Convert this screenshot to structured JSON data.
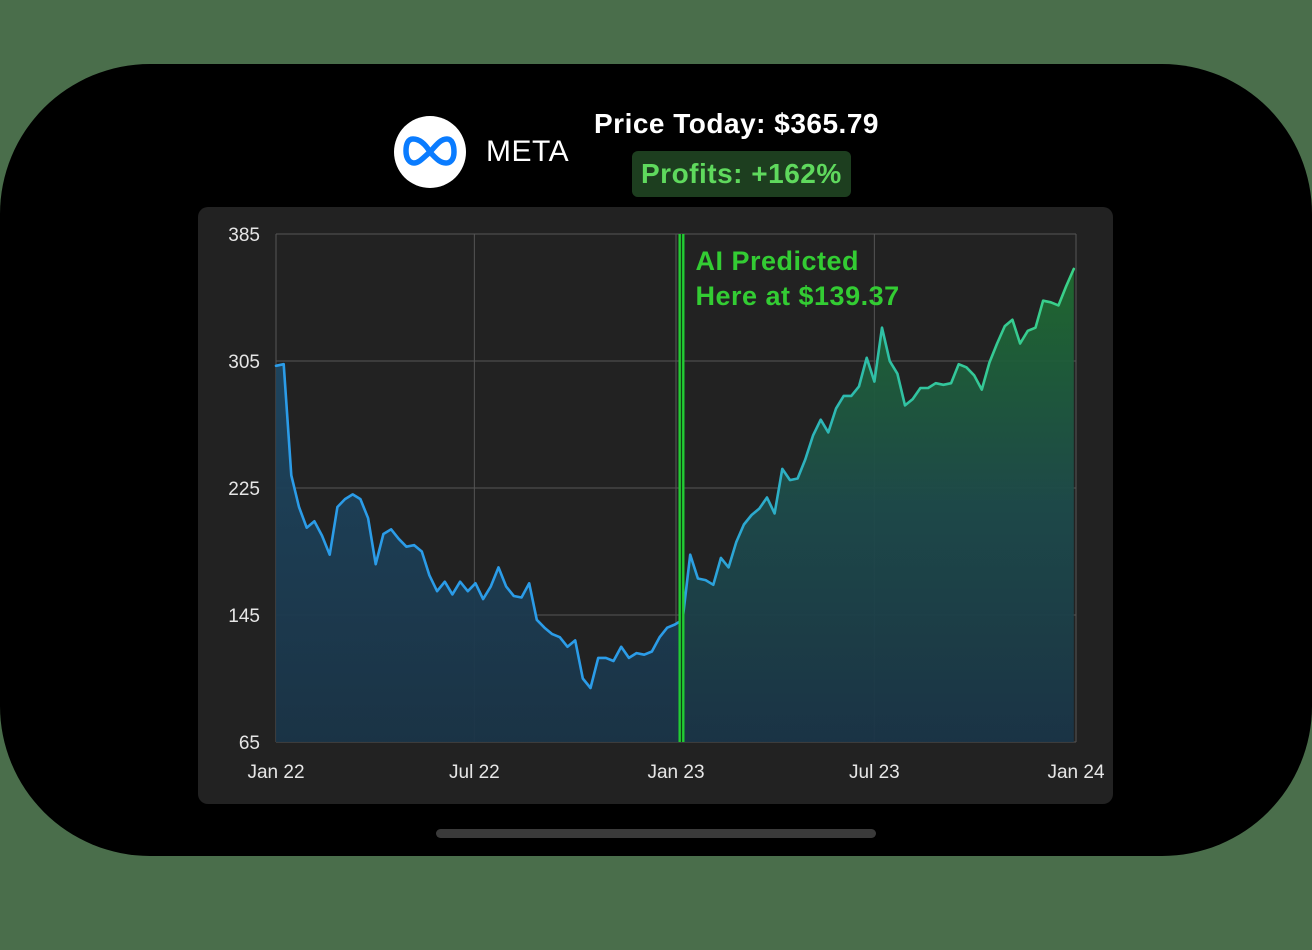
{
  "header": {
    "ticker": "META",
    "logo_icon": "meta-infinity-logo-icon",
    "price_label": "Price Today: $365.79",
    "profits_label": "Profits: +162%"
  },
  "colors": {
    "background": "#4a6e4b",
    "card": "#222222",
    "line_blue": "#2b9ce8",
    "line_green": "#3ad188",
    "marker_green": "#22cc33",
    "profit_text": "#5fd95d",
    "profit_bg": "#1d3e1f"
  },
  "chart_data": {
    "type": "area",
    "title": "",
    "xlabel": "",
    "ylabel": "",
    "ylim": [
      65,
      385
    ],
    "yticks": [
      65,
      145,
      225,
      305,
      385
    ],
    "xlim": [
      "2022-01-01",
      "2024-01-01"
    ],
    "xticks": [
      {
        "value": "2022-01-01",
        "label": "Jan 22"
      },
      {
        "value": "2022-07-01",
        "label": "Jul 22"
      },
      {
        "value": "2023-01-01",
        "label": "Jan 23"
      },
      {
        "value": "2023-07-01",
        "label": "Jul 23"
      },
      {
        "value": "2024-01-01",
        "label": "Jan 24"
      }
    ],
    "grid": true,
    "annotation": {
      "x": "2023-01-06",
      "value": 139.37,
      "line1": "AI Predicted",
      "line2": "Here at $139.37"
    },
    "series": [
      {
        "x": [
          "2022-01-01",
          "2022-01-08",
          "2022-01-15",
          "2022-01-22",
          "2022-01-29",
          "2022-02-05",
          "2022-02-12",
          "2022-02-19",
          "2022-02-26",
          "2022-03-05",
          "2022-03-12",
          "2022-03-19",
          "2022-03-26",
          "2022-04-02",
          "2022-04-09",
          "2022-04-16",
          "2022-04-23",
          "2022-04-30",
          "2022-05-07",
          "2022-05-14",
          "2022-05-21",
          "2022-05-28",
          "2022-06-04",
          "2022-06-11",
          "2022-06-18",
          "2022-06-25",
          "2022-07-02",
          "2022-07-09",
          "2022-07-16",
          "2022-07-23",
          "2022-07-30",
          "2022-08-06",
          "2022-08-13",
          "2022-08-20",
          "2022-08-27",
          "2022-09-03",
          "2022-09-10",
          "2022-09-17",
          "2022-09-24",
          "2022-10-01",
          "2022-10-08",
          "2022-10-15",
          "2022-10-22",
          "2022-10-29",
          "2022-11-05",
          "2022-11-12",
          "2022-11-19",
          "2022-11-26",
          "2022-12-03",
          "2022-12-10",
          "2022-12-17",
          "2022-12-24",
          "2022-12-31",
          "2023-01-07",
          "2023-01-14",
          "2023-01-21",
          "2023-01-28",
          "2023-02-04",
          "2023-02-11",
          "2023-02-18",
          "2023-02-25",
          "2023-03-04",
          "2023-03-11",
          "2023-03-18",
          "2023-03-25",
          "2023-04-01",
          "2023-04-08",
          "2023-04-15",
          "2023-04-22",
          "2023-04-29",
          "2023-05-06",
          "2023-05-13",
          "2023-05-20",
          "2023-05-27",
          "2023-06-03",
          "2023-06-10",
          "2023-06-17",
          "2023-06-24",
          "2023-07-01",
          "2023-07-08",
          "2023-07-15",
          "2023-07-22",
          "2023-07-29",
          "2023-08-05",
          "2023-08-12",
          "2023-08-19",
          "2023-08-26",
          "2023-09-02",
          "2023-09-09",
          "2023-09-16",
          "2023-09-23",
          "2023-09-30",
          "2023-10-07",
          "2023-10-14",
          "2023-10-21",
          "2023-10-28",
          "2023-11-04",
          "2023-11-11",
          "2023-11-18",
          "2023-11-25",
          "2023-12-02",
          "2023-12-09",
          "2023-12-16",
          "2023-12-23",
          "2023-12-30"
        ],
        "values": [
          302,
          303,
          233,
          213,
          200,
          204,
          195,
          183,
          213,
          218,
          221,
          218,
          206,
          177,
          196,
          199,
          193,
          188,
          189,
          185,
          170,
          160,
          166,
          158,
          166,
          160,
          165,
          155,
          163,
          175,
          163,
          157,
          156,
          165,
          142,
          137,
          133,
          131,
          125,
          129,
          105,
          99,
          118,
          118,
          116,
          125,
          118,
          121,
          120,
          122,
          131,
          137,
          139,
          142,
          183,
          168,
          167,
          164,
          181,
          175,
          191,
          202,
          208,
          212,
          219,
          209,
          237,
          230,
          231,
          243,
          258,
          268,
          260,
          275,
          283,
          283,
          289,
          307,
          292,
          326,
          305,
          297,
          277,
          281,
          288,
          288,
          291,
          290,
          291,
          303,
          301,
          296,
          287,
          304,
          316,
          327,
          331,
          316,
          324,
          326,
          343,
          342,
          340,
          352,
          363
        ]
      }
    ]
  }
}
